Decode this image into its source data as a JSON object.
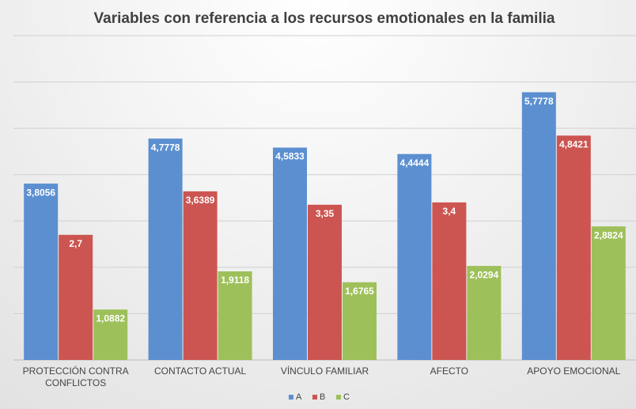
{
  "chart_data": {
    "type": "bar",
    "title": "Variables con referencia a los recursos emotionales en la familia",
    "categories": [
      "PROTECCIÓN CONTRA CONFLICTOS",
      "CONTACTO ACTUAL",
      "VÍNCULO FAMILIAR",
      "AFECTO",
      "APOYO EMOCIONAL"
    ],
    "series": [
      {
        "name": "A",
        "color": "#5b8fd0",
        "values": [
          3.8056,
          4.7778,
          4.5833,
          4.4444,
          5.7778
        ],
        "value_labels": [
          "3,8056",
          "4,7778",
          "4,5833",
          "4,4444",
          "5,7778"
        ]
      },
      {
        "name": "B",
        "color": "#cc5551",
        "values": [
          2.7,
          3.6389,
          3.35,
          3.4,
          4.8421
        ],
        "value_labels": [
          "2,7",
          "3,6389",
          "3,35",
          "3,4",
          "4,8421"
        ]
      },
      {
        "name": "C",
        "color": "#9ec05a",
        "values": [
          1.0882,
          1.9118,
          1.6765,
          2.0294,
          2.8824
        ],
        "value_labels": [
          "1,0882",
          "1,9118",
          "1,6765",
          "2,0294",
          "2,8824"
        ]
      }
    ],
    "ylim": [
      0,
      7
    ],
    "yticks": [
      0,
      1,
      2,
      3,
      4,
      5,
      6,
      7
    ],
    "grid": true,
    "legend": "bottom"
  }
}
